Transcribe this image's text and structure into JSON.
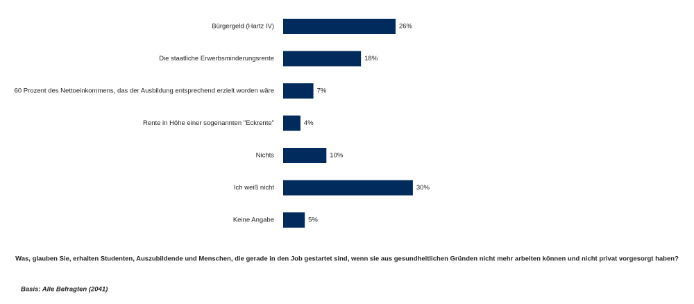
{
  "chart_data": {
    "type": "hbar",
    "categories": [
      "Bürgergeld (Hartz IV)",
      "Die staatliche Erwerbsminderungsrente",
      "60 Prozent des Nettoeinkommens, das der Ausbildung entsprechend erzielt worden wäre",
      "Rente in Höhe einer sogenannten \"Eckrente\"",
      "Nichts",
      "Ich weiß nicht",
      "Keine Angabe"
    ],
    "values": [
      26,
      18,
      7,
      4,
      10,
      30,
      5
    ],
    "value_labels": [
      "26%",
      "18%",
      "7%",
      "4%",
      "10%",
      "30%",
      "5%"
    ],
    "color": "#002b5c",
    "question": "Was, glauben Sie, erhalten Studenten, Auszubildende und Menschen, die gerade in den Job gestartet sind, wenn sie aus gesundheitlichen Gründen nicht mehr arbeiten können und nicht privat vorgesorgt haben?",
    "basis": "Basis: Alle Befragten (2041)"
  }
}
